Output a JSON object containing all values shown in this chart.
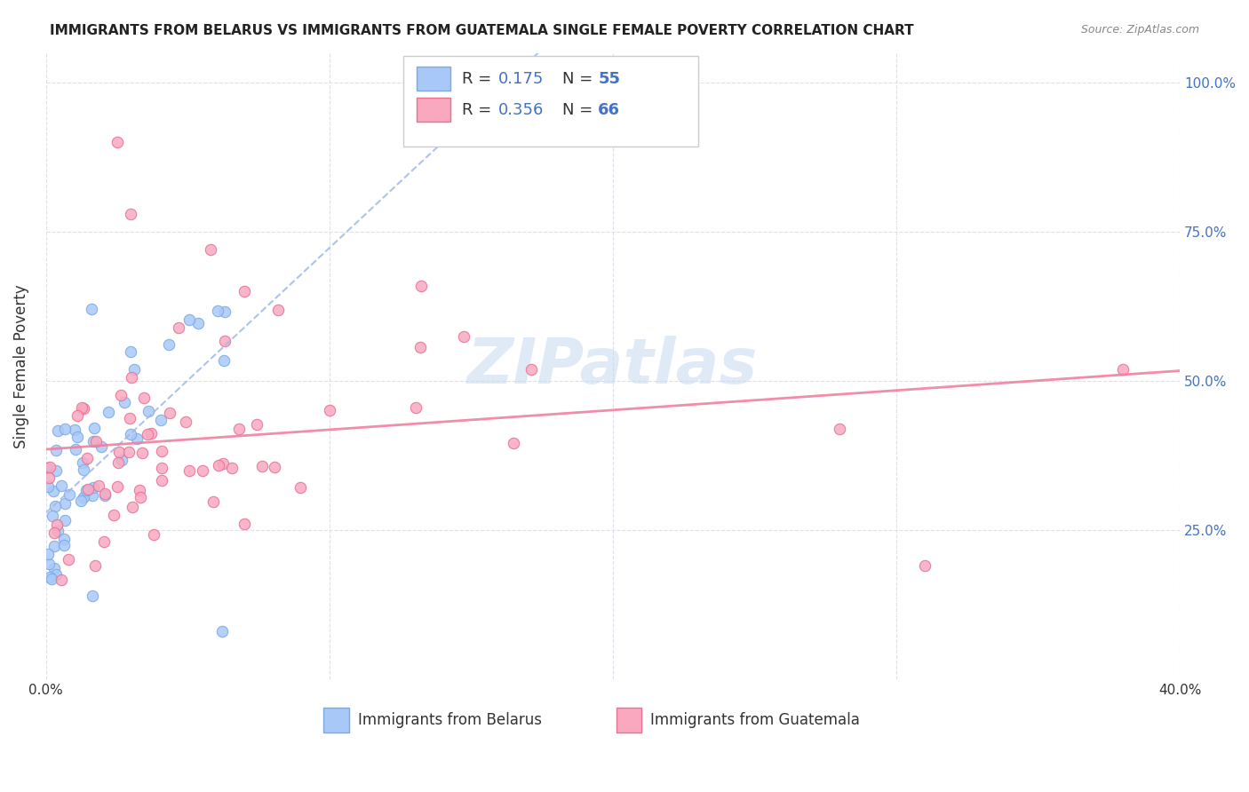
{
  "title": "IMMIGRANTS FROM BELARUS VS IMMIGRANTS FROM GUATEMALA SINGLE FEMALE POVERTY CORRELATION CHART",
  "source": "Source: ZipAtlas.com",
  "ylabel": "Single Female Poverty",
  "x_min": 0.0,
  "x_max": 0.4,
  "y_min": 0.0,
  "y_max": 1.05,
  "legend_R1": "0.175",
  "legend_N1": "55",
  "legend_R2": "0.356",
  "legend_N2": "66",
  "color_belarus": "#a8c8f8",
  "color_belarus_edge": "#7aaae0",
  "color_guatemala": "#f9a8c0",
  "color_guatemala_edge": "#e87090",
  "color_trend_belarus": "#a0b8e8",
  "color_trend_guatemala": "#f080a0",
  "color_blue_text": "#4472c4",
  "background_color": "#ffffff",
  "grid_color": "#dde0ea"
}
